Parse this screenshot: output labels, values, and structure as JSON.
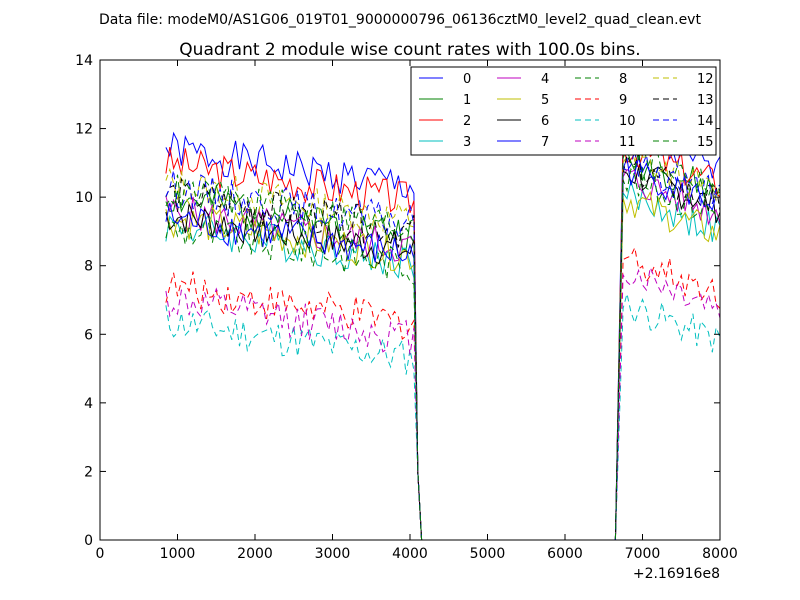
{
  "chart_data": {
    "type": "line",
    "suptitle": "Data file: modeM0/AS1G06_019T01_9000000796_06136cztM0_level2_quad_clean.evt",
    "title": "Quadrant 2 module wise count rates with 100.0s bins.",
    "xlabel": "",
    "ylabel": "",
    "xlim": [
      0,
      8000
    ],
    "ylim": [
      0,
      14
    ],
    "x_offset_label": "+2.16916e8",
    "x_ticks": [
      0,
      1000,
      2000,
      3000,
      4000,
      5000,
      6000,
      7000,
      8000
    ],
    "y_ticks": [
      0,
      2,
      4,
      6,
      8,
      10,
      12,
      14
    ],
    "grid": false,
    "legend_position": "top-right",
    "x_segments": [
      {
        "start": 850,
        "end": 4050
      },
      {
        "start": 4150,
        "end": 6650
      },
      {
        "start": 6750,
        "end": 8000
      }
    ],
    "series": [
      {
        "name": "0",
        "color": "#0000ff",
        "style": "solid",
        "level1": 10.6,
        "level3": 11.2
      },
      {
        "name": "1",
        "color": "#008000",
        "style": "solid",
        "level1": 9.2,
        "level3": 10.6
      },
      {
        "name": "2",
        "color": "#ff0000",
        "style": "solid",
        "level1": 10.2,
        "level3": 10.9
      },
      {
        "name": "3",
        "color": "#00bfbf",
        "style": "solid",
        "level1": 8.4,
        "level3": 9.5
      },
      {
        "name": "4",
        "color": "#bf00bf",
        "style": "solid",
        "level1": 8.8,
        "level3": 10.0
      },
      {
        "name": "5",
        "color": "#bfbf00",
        "style": "solid",
        "level1": 8.6,
        "level3": 9.4
      },
      {
        "name": "6",
        "color": "#000000",
        "style": "solid",
        "level1": 8.7,
        "level3": 10.2
      },
      {
        "name": "7",
        "color": "#0000ff",
        "style": "solid",
        "level1": 8.6,
        "level3": 10.3
      },
      {
        "name": "8",
        "color": "#008000",
        "style": "dashed",
        "level1": 8.3,
        "level3": 10.0
      },
      {
        "name": "9",
        "color": "#ff0000",
        "style": "dashed",
        "level1": 6.6,
        "level3": 7.7
      },
      {
        "name": "10",
        "color": "#00bfbf",
        "style": "dashed",
        "level1": 5.6,
        "level3": 6.3
      },
      {
        "name": "11",
        "color": "#bf00bf",
        "style": "dashed",
        "level1": 6.2,
        "level3": 7.3
      },
      {
        "name": "12",
        "color": "#bfbf00",
        "style": "dashed",
        "level1": 9.6,
        "level3": 10.6
      },
      {
        "name": "13",
        "color": "#000000",
        "style": "dashed",
        "level1": 9.3,
        "level3": 10.3
      },
      {
        "name": "14",
        "color": "#0000ff",
        "style": "dashed",
        "level1": 9.5,
        "level3": 10.5
      },
      {
        "name": "15",
        "color": "#008000",
        "style": "dashed",
        "level1": 9.4,
        "level3": 10.8
      }
    ],
    "segment2_value": 0
  }
}
